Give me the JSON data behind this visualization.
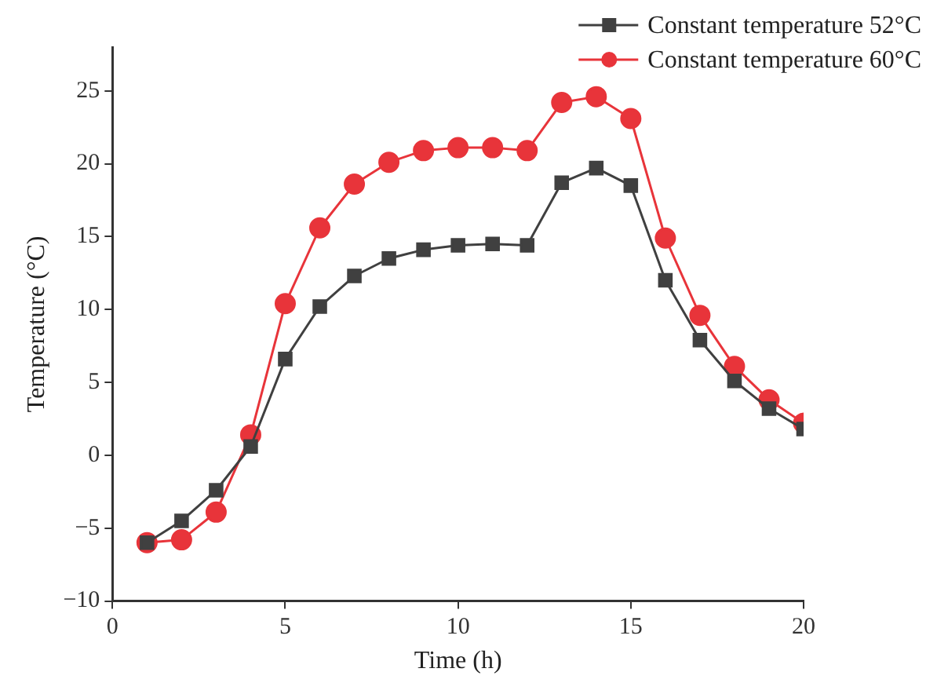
{
  "chart_data": {
    "type": "line",
    "xlabel": "Time (h)",
    "ylabel": "Temperature (°C)",
    "x": [
      1,
      2,
      3,
      4,
      5,
      6,
      7,
      8,
      9,
      10,
      11,
      12,
      13,
      14,
      15,
      16,
      17,
      18,
      19,
      20
    ],
    "series": [
      {
        "name": "Constant temperature 52°C",
        "color": "#404040",
        "marker": "square",
        "values": [
          -6,
          -4.5,
          -2.4,
          0.6,
          6.6,
          10.2,
          12.3,
          13.5,
          14.1,
          14.4,
          14.5,
          14.4,
          18.7,
          19.7,
          18.5,
          12.0,
          7.9,
          5.1,
          3.2,
          1.8
        ]
      },
      {
        "name": "Constant temperature 60°C",
        "color": "#e8343a",
        "marker": "circle",
        "values": [
          -6,
          -5.8,
          -3.9,
          1.4,
          10.4,
          15.6,
          18.6,
          20.1,
          20.9,
          21.1,
          21.1,
          20.9,
          24.2,
          24.6,
          23.1,
          14.9,
          9.6,
          6.1,
          3.8,
          2.2
        ]
      }
    ],
    "xlim": [
      0,
      20
    ],
    "xticks": [
      0,
      5,
      10,
      15,
      20
    ],
    "ylim": [
      -10,
      28
    ],
    "yticks": [
      {
        "value": -10,
        "label": "−10"
      },
      {
        "value": -5,
        "label": "−5"
      },
      0,
      5,
      10,
      15,
      20,
      25
    ],
    "grid": false,
    "legend": "top right",
    "line_style": "solid"
  }
}
